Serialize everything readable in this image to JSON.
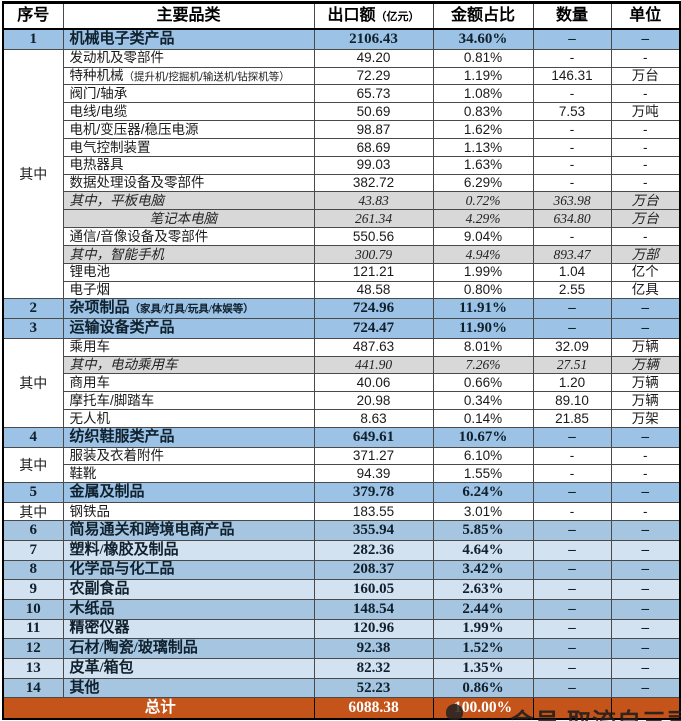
{
  "chart_data": {
    "type": "table",
    "title": "",
    "columns": [
      "序号",
      "主要品类",
      "出口额",
      "金额占比",
      "数量",
      "单位"
    ],
    "value_unit_note": "（亿元）",
    "rows": [
      {
        "sn": "1",
        "cat": true,
        "bg": "cat",
        "name": "机械电子类产品",
        "note": "",
        "val": "2106.43",
        "pct": "34.60%",
        "qty": "–",
        "unit": "–"
      },
      {
        "sn": "其中",
        "span": 14,
        "bg": "white",
        "name": "发动机及零部件",
        "note": "",
        "val": "49.20",
        "pct": "0.81%",
        "qty": "-",
        "unit": "-"
      },
      {
        "bg": "white",
        "name": "特种机械",
        "note": "（提升机/挖掘机/输送机/钻探机等）",
        "val": "72.29",
        "pct": "1.19%",
        "qty": "146.31",
        "unit": "万台"
      },
      {
        "bg": "white",
        "name": "阀门/轴承",
        "note": "",
        "val": "65.73",
        "pct": "1.08%",
        "qty": "-",
        "unit": "-"
      },
      {
        "bg": "white",
        "name": "电线/电缆",
        "note": "",
        "val": "50.69",
        "pct": "0.83%",
        "qty": "7.53",
        "unit": "万吨"
      },
      {
        "bg": "white",
        "name": "电机/变压器/稳压电源",
        "note": "",
        "val": "98.87",
        "pct": "1.62%",
        "qty": "-",
        "unit": "-"
      },
      {
        "bg": "white",
        "name": "电气控制装置",
        "note": "",
        "val": "68.69",
        "pct": "1.13%",
        "qty": "-",
        "unit": "-"
      },
      {
        "bg": "white",
        "name": "电热器具",
        "note": "",
        "val": "99.03",
        "pct": "1.63%",
        "qty": "-",
        "unit": "-"
      },
      {
        "bg": "white",
        "name": "数据处理设备及零部件",
        "note": "",
        "val": "382.72",
        "pct": "6.29%",
        "qty": "-",
        "unit": "-"
      },
      {
        "bg": "gray",
        "name": "其中，平板电脑",
        "note": "",
        "val": "43.83",
        "pct": "0.72%",
        "qty": "363.98",
        "unit": "万台"
      },
      {
        "bg": "gray",
        "indent": 1,
        "name": "笔记本电脑",
        "note": "",
        "val": "261.34",
        "pct": "4.29%",
        "qty": "634.80",
        "unit": "万台"
      },
      {
        "bg": "white",
        "name": "通信/音像设备及零部件",
        "note": "",
        "val": "550.56",
        "pct": "9.04%",
        "qty": "-",
        "unit": "-"
      },
      {
        "bg": "gray",
        "name": "其中，智能手机",
        "note": "",
        "val": "300.79",
        "pct": "4.94%",
        "qty": "893.47",
        "unit": "万部"
      },
      {
        "bg": "white",
        "name": "锂电池",
        "note": "",
        "val": "121.21",
        "pct": "1.99%",
        "qty": "1.04",
        "unit": "亿个"
      },
      {
        "bg": "white",
        "name": "电子烟",
        "note": "",
        "val": "48.58",
        "pct": "0.80%",
        "qty": "2.55",
        "unit": "亿具"
      },
      {
        "sn": "2",
        "cat": true,
        "bg": "cat",
        "name": "杂项制品",
        "note": "（家具/灯具/玩具/体娱等）",
        "val": "724.96",
        "pct": "11.91%",
        "qty": "–",
        "unit": "–"
      },
      {
        "sn": "3",
        "cat": true,
        "bg": "cat",
        "name": "运输设备类产品",
        "note": "",
        "val": "724.47",
        "pct": "11.90%",
        "qty": "–",
        "unit": "–"
      },
      {
        "sn": "其中",
        "span": 5,
        "bg": "white",
        "name": "乘用车",
        "note": "",
        "val": "487.63",
        "pct": "8.01%",
        "qty": "32.09",
        "unit": "万辆"
      },
      {
        "bg": "gray",
        "name": "其中，电动乘用车",
        "note": "",
        "val": "441.90",
        "pct": "7.26%",
        "qty": "27.51",
        "unit": "万辆"
      },
      {
        "bg": "white",
        "name": "商用车",
        "note": "",
        "val": "40.06",
        "pct": "0.66%",
        "qty": "1.20",
        "unit": "万辆"
      },
      {
        "bg": "white",
        "name": "摩托车/脚踏车",
        "note": "",
        "val": "20.98",
        "pct": "0.34%",
        "qty": "89.10",
        "unit": "万辆"
      },
      {
        "bg": "white",
        "name": "无人机",
        "note": "",
        "val": "8.63",
        "pct": "0.14%",
        "qty": "21.85",
        "unit": "万架"
      },
      {
        "sn": "4",
        "cat": true,
        "bg": "cat",
        "name": "纺织鞋服类产品",
        "note": "",
        "val": "649.61",
        "pct": "10.67%",
        "qty": "–",
        "unit": "–"
      },
      {
        "sn": "其中",
        "span": 2,
        "bg": "white",
        "name": "服装及衣着附件",
        "note": "",
        "val": "371.27",
        "pct": "6.10%",
        "qty": "-",
        "unit": "-"
      },
      {
        "bg": "white",
        "name": "鞋靴",
        "note": "",
        "val": "94.39",
        "pct": "1.55%",
        "qty": "-",
        "unit": "-"
      },
      {
        "sn": "5",
        "cat": true,
        "bg": "cat",
        "name": "金属及制品",
        "note": "",
        "val": "379.78",
        "pct": "6.24%",
        "qty": "–",
        "unit": "–"
      },
      {
        "sn": "其中",
        "span": 1,
        "bg": "white",
        "name": "钢铁品",
        "note": "",
        "val": "183.55",
        "pct": "3.01%",
        "qty": "-",
        "unit": "-"
      },
      {
        "sn": "6",
        "cat": true,
        "bg": "alt-dark",
        "name": "简易通关和跨境电商产品",
        "note": "",
        "val": "355.94",
        "pct": "5.85%",
        "qty": "–",
        "unit": "–"
      },
      {
        "sn": "7",
        "cat": true,
        "bg": "alt-light",
        "name": "塑料/橡胶及制品",
        "note": "",
        "val": "282.36",
        "pct": "4.64%",
        "qty": "–",
        "unit": "–"
      },
      {
        "sn": "8",
        "cat": true,
        "bg": "alt-dark",
        "name": "化学品与化工品",
        "note": "",
        "val": "208.37",
        "pct": "3.42%",
        "qty": "–",
        "unit": "–"
      },
      {
        "sn": "9",
        "cat": true,
        "bg": "alt-light",
        "name": "农副食品",
        "note": "",
        "val": "160.05",
        "pct": "2.63%",
        "qty": "–",
        "unit": "–"
      },
      {
        "sn": "10",
        "cat": true,
        "bg": "alt-dark",
        "name": "木纸品",
        "note": "",
        "val": "148.54",
        "pct": "2.44%",
        "qty": "–",
        "unit": "–"
      },
      {
        "sn": "11",
        "cat": true,
        "bg": "alt-light",
        "name": "精密仪器",
        "note": "",
        "val": "120.96",
        "pct": "1.99%",
        "qty": "–",
        "unit": "–"
      },
      {
        "sn": "12",
        "cat": true,
        "bg": "alt-dark",
        "name": "石材/陶瓷/玻璃制品",
        "note": "",
        "val": "92.38",
        "pct": "1.52%",
        "qty": "–",
        "unit": "–"
      },
      {
        "sn": "13",
        "cat": true,
        "bg": "alt-light",
        "name": "皮革/箱包",
        "note": "",
        "val": "82.32",
        "pct": "1.35%",
        "qty": "–",
        "unit": "–"
      },
      {
        "sn": "14",
        "cat": true,
        "bg": "alt-dark",
        "name": "其他",
        "note": "",
        "val": "52.23",
        "pct": "0.86%",
        "qty": "–",
        "unit": "–"
      },
      {
        "total": true,
        "bg": "orange",
        "name": "总计",
        "note": "",
        "val": "6088.38",
        "pct": "100.00%",
        "qty": "",
        "unit": ""
      }
    ],
    "layout": {
      "grid": true,
      "header_bold": true
    },
    "colors": {
      "category_row": "#9cc2e5",
      "alt_dark_row": "#a5c5e1",
      "alt_light_row": "#d3e2f1",
      "subtotal_gray_row": "#d8d8d8",
      "total_row": "#c5541b",
      "total_text": "#ffffff",
      "border": "#000000"
    }
  },
  "watermark": {
    "text": "会员  取流自三司"
  }
}
